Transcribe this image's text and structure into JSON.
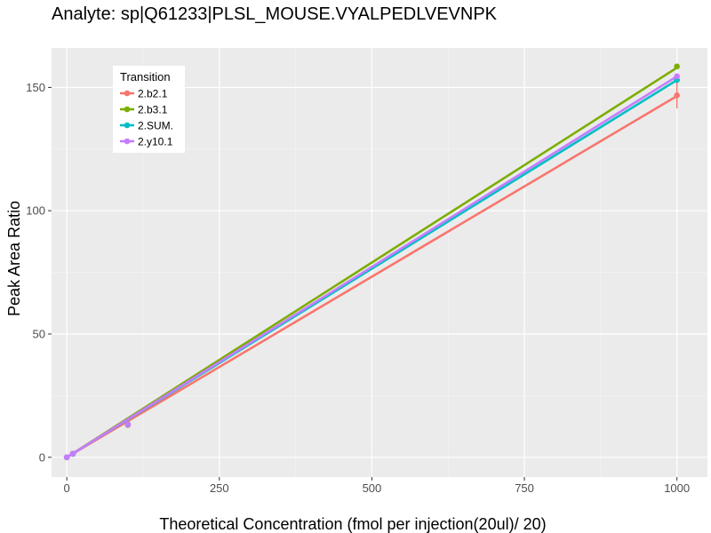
{
  "chart_data": {
    "type": "line",
    "title": "Analyte: sp|Q61233|PLSL_MOUSE.VYALPEDLVEVNPK",
    "xlabel": "Theoretical Concentration (fmol per injection(20ul)/ 20)",
    "ylabel": "Peak Area Ratio",
    "xlim": [
      -25,
      1050
    ],
    "ylim": [
      -8,
      166
    ],
    "x_ticks": [
      0,
      250,
      500,
      750,
      1000
    ],
    "y_ticks": [
      0,
      50,
      100,
      150
    ],
    "grid": true,
    "legend": {
      "title": "Transition",
      "placement": "top-left"
    },
    "series": [
      {
        "name": "2.b2.1",
        "color": "#F8766D",
        "points": [
          [
            0,
            0
          ],
          [
            10,
            1.4
          ],
          [
            100,
            13.1
          ],
          [
            1000,
            146.8
          ]
        ],
        "fit": [
          [
            0,
            0
          ],
          [
            1000,
            146.5
          ]
        ],
        "error_bars": [
          {
            "x": 1000,
            "low": 141.5,
            "high": 152.0
          }
        ]
      },
      {
        "name": "2.b3.1",
        "color": "#7CAE00",
        "points": [
          [
            0,
            0
          ],
          [
            10,
            1.5
          ],
          [
            100,
            13.5
          ],
          [
            1000,
            158.5
          ]
        ],
        "fit": [
          [
            0,
            0
          ],
          [
            1000,
            158.0
          ]
        ],
        "error_bars": []
      },
      {
        "name": "2.SUM.",
        "color": "#00BFC4",
        "points": [
          [
            0,
            0
          ],
          [
            10,
            1.4
          ],
          [
            100,
            13.3
          ],
          [
            1000,
            153.0
          ]
        ],
        "fit": [
          [
            0,
            0
          ],
          [
            1000,
            153.0
          ]
        ],
        "error_bars": []
      },
      {
        "name": "2.y10.1",
        "color": "#C77CFF",
        "points": [
          [
            0,
            0
          ],
          [
            10,
            1.5
          ],
          [
            100,
            13.4
          ],
          [
            1000,
            154.5
          ]
        ],
        "fit": [
          [
            0,
            0
          ],
          [
            1000,
            154.5
          ]
        ],
        "error_bars": []
      }
    ]
  }
}
